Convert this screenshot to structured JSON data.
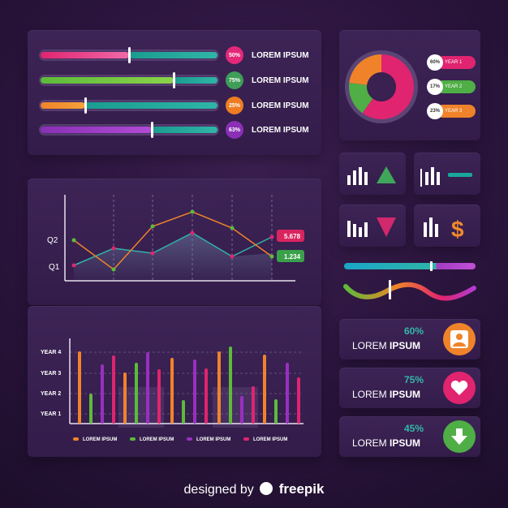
{
  "sliders": [
    {
      "pct": "50%",
      "label": "LOREM IPSUM",
      "value": 0.5,
      "gradA": [
        "#e0246f",
        "#f06aa8"
      ],
      "badge": "#e3287a"
    },
    {
      "pct": "75%",
      "label": "LOREM IPSUM",
      "value": 0.75,
      "gradA": [
        "#5dbb3a",
        "#8ad24a"
      ],
      "badge": "#3f9d57"
    },
    {
      "pct": "25%",
      "label": "LOREM IPSUM",
      "value": 0.25,
      "gradA": [
        "#f0832a",
        "#f5a23a"
      ],
      "badge": "#ee7d22"
    },
    {
      "pct": "63%",
      "label": "LOREM IPSUM",
      "value": 0.63,
      "gradA": [
        "#8a2fb6",
        "#b14bd6"
      ],
      "badge": "#8a2fb6"
    }
  ],
  "donut": {
    "years": [
      {
        "pct": "60%",
        "label": "YEAR 1",
        "value": 60,
        "color": "#e0246f"
      },
      {
        "pct": "17%",
        "label": "YEAR 2",
        "value": 17,
        "color": "#4fae45"
      },
      {
        "pct": "23%",
        "label": "YEAR 3",
        "value": 23,
        "color": "#f0832a"
      }
    ]
  },
  "line_chart": {
    "y_ticks": [
      "Q2",
      "Q1"
    ],
    "values_badges": [
      {
        "text": "5.678",
        "color": "#d9245f"
      },
      {
        "text": "1.234",
        "color": "#3aa14a"
      }
    ]
  },
  "bar_chart": {
    "y_ticks": [
      "YEAR 4",
      "YEAR 3",
      "YEAR 2",
      "YEAR 1"
    ],
    "legend": [
      {
        "label": "LOREM IPSUM",
        "color": "#f0832a"
      },
      {
        "label": "LOREM IPSUM",
        "color": "#5dbb3a"
      },
      {
        "label": "LOREM IPSUM",
        "color": "#9a2fc0"
      },
      {
        "label": "LOREM IPSUM",
        "color": "#e0246f"
      }
    ]
  },
  "widgets": [
    {
      "icon": "bar-chart-icon",
      "second": "arrow-up-icon",
      "color": "#3fa65a"
    },
    {
      "icon": "bar-chart-icon",
      "second": "minus-icon",
      "color": "#1aa69a"
    },
    {
      "icon": "bar-chart-icon",
      "second": "arrow-down-icon",
      "color": "#d2286d"
    },
    {
      "icon": "bar-chart-icon",
      "second": "dollar-icon",
      "color": "#f08a2a"
    }
  ],
  "stats": [
    {
      "pct": "60%",
      "text_a": "LOREM",
      "text_b": "IPSUM",
      "icon": "user-icon",
      "circle": "#f0832a",
      "pct_color": "#34b7a9"
    },
    {
      "pct": "75%",
      "text_a": "LOREM",
      "text_b": "IPSUM",
      "icon": "heart-icon",
      "circle": "#e0246f",
      "pct_color": "#34b7a9"
    },
    {
      "pct": "45%",
      "text_a": "LOREM",
      "text_b": "IPSUM",
      "icon": "arrow-down-icon",
      "circle": "#4fae45",
      "pct_color": "#34b7a9"
    }
  ],
  "footer": {
    "prefix": "designed by",
    "brand": "freepik"
  }
}
